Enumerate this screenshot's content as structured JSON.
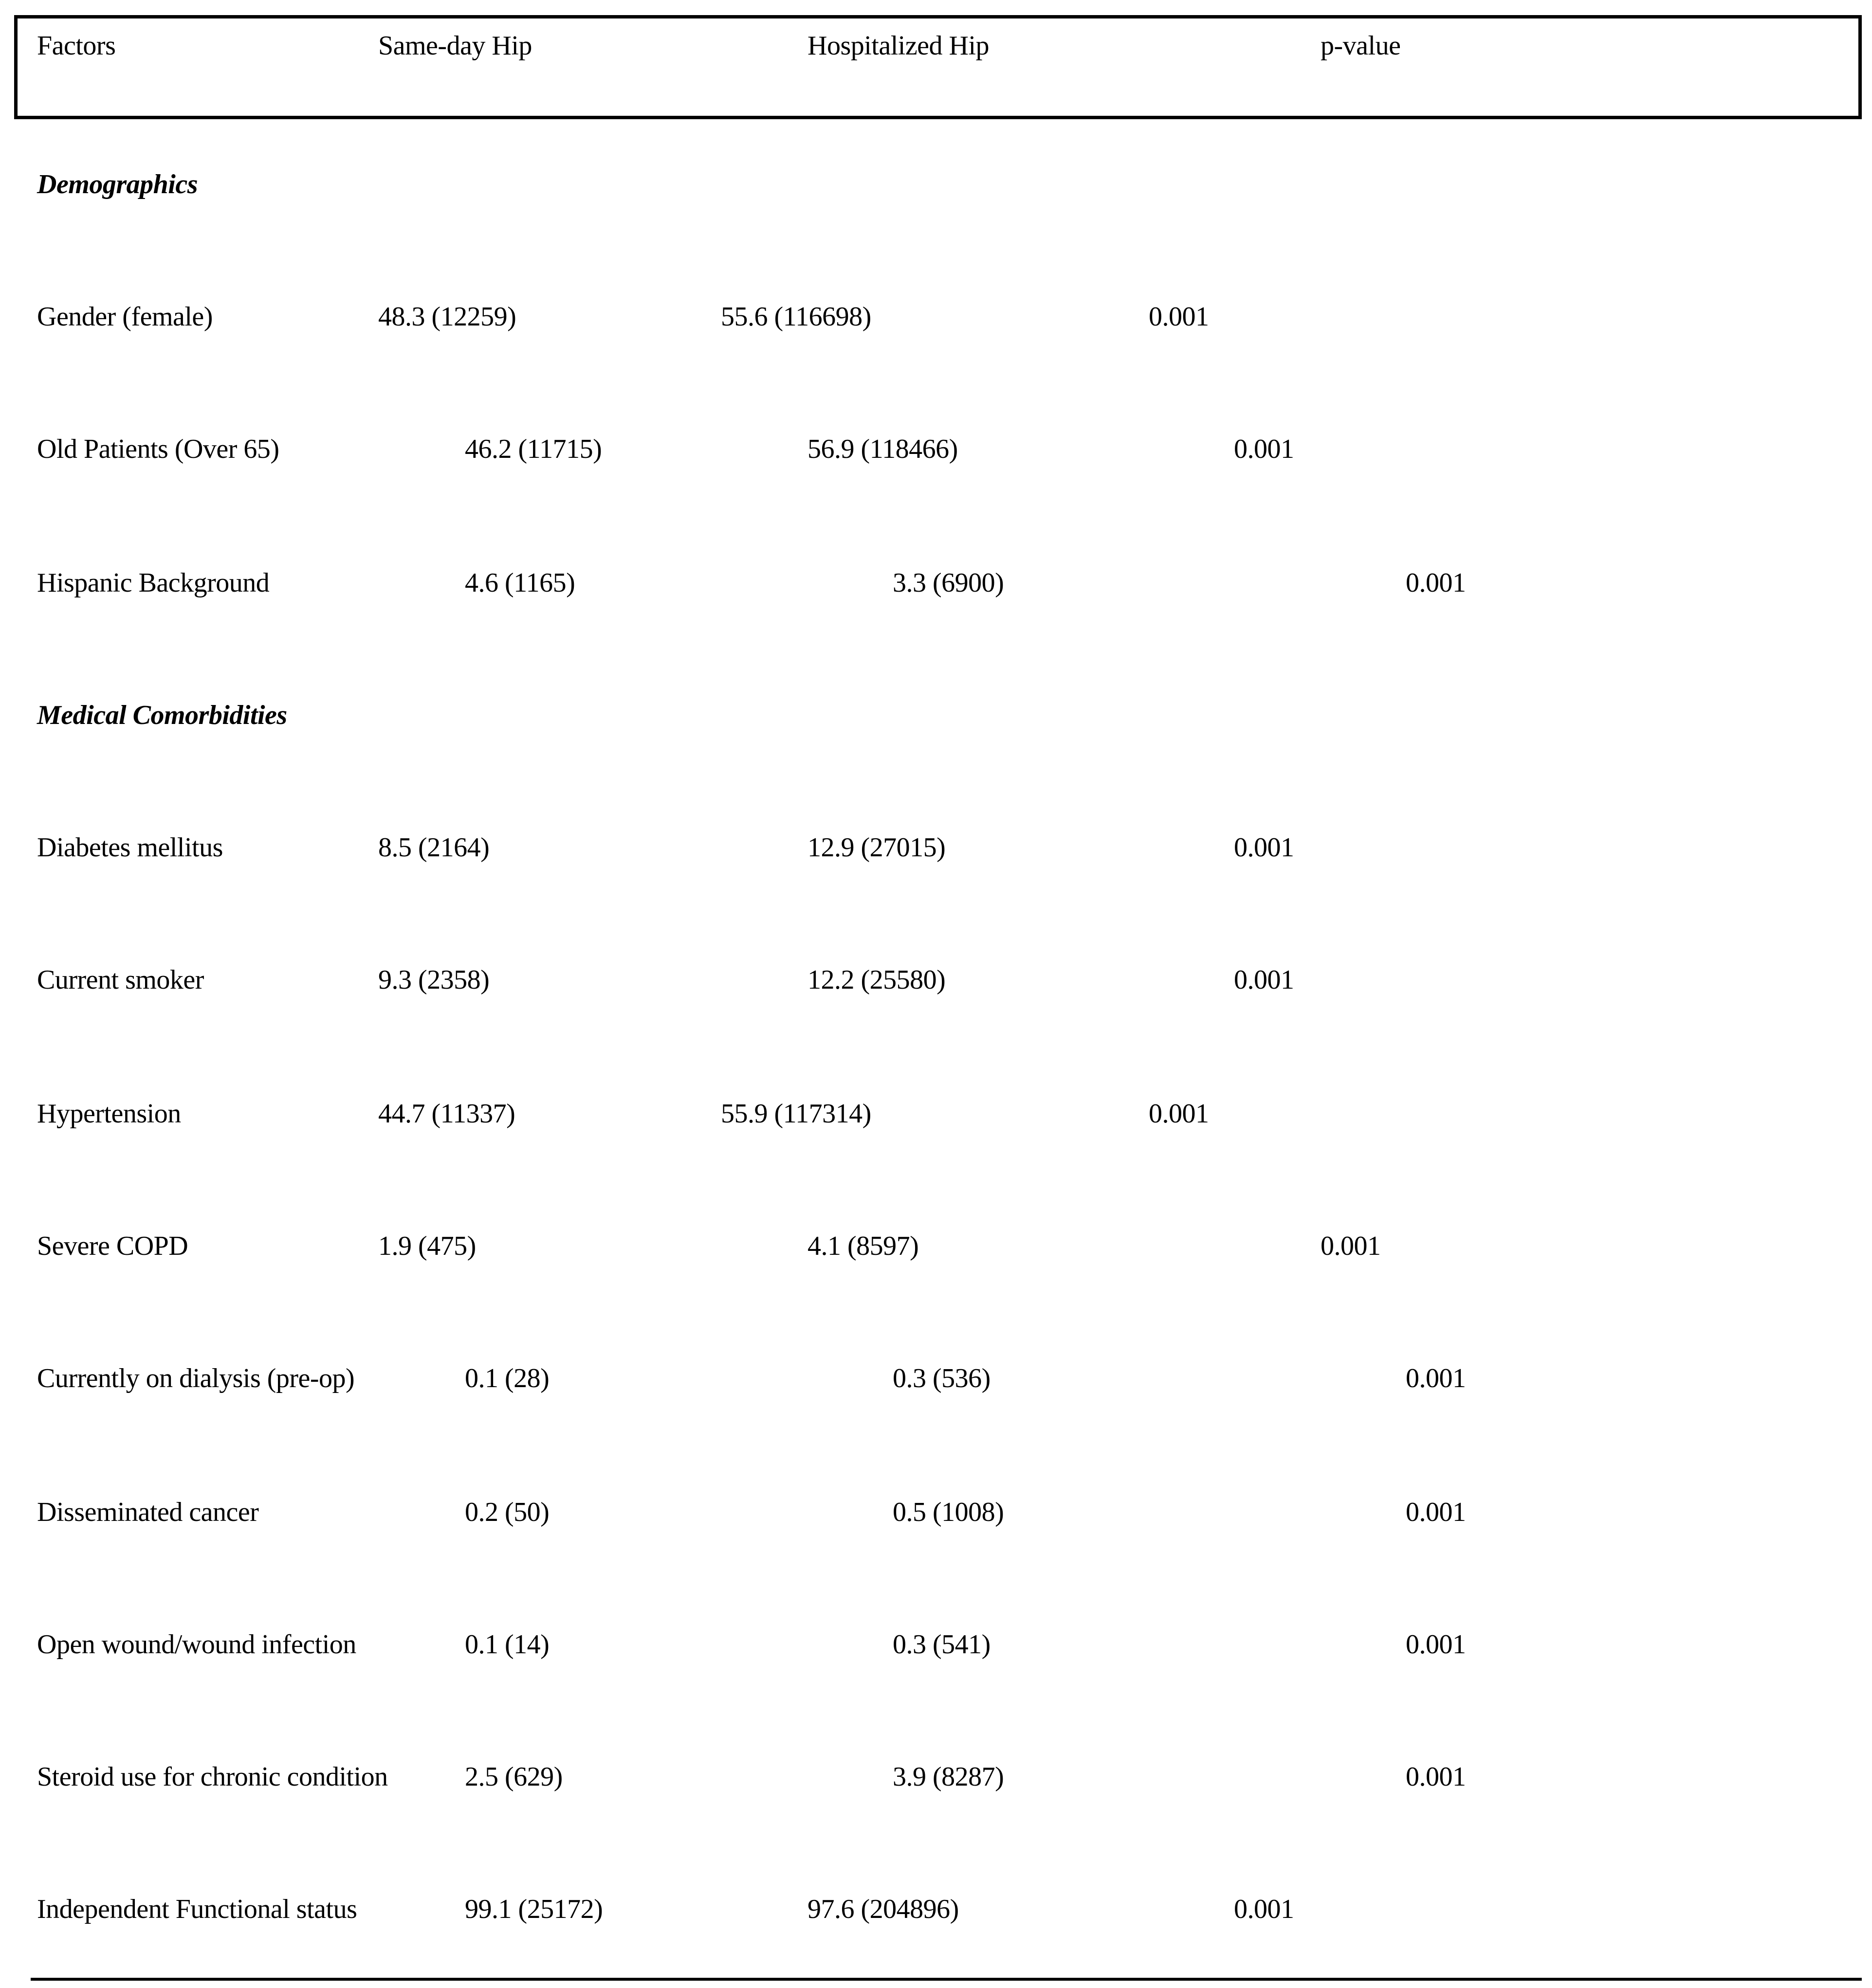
{
  "header": {
    "factors": "Factors",
    "same_day": "Same-day Hip",
    "hospitalized": "Hospitalized Hip",
    "p_value": "p-value"
  },
  "sections": [
    {
      "title": "Demographics",
      "rows": [
        {
          "factor": "Gender (female)",
          "same_day": "48.3 (12259)",
          "hospitalized": "55.6 (116698)",
          "p": "0.001"
        },
        {
          "factor": "Old Patients (Over 65)",
          "same_day": "46.2 (11715)",
          "hospitalized": "56.9 (118466)",
          "p": "0.001"
        },
        {
          "factor": "Hispanic Background",
          "same_day": "4.6 (1165)",
          "hospitalized": "3.3 (6900)",
          "p": "0.001"
        }
      ]
    },
    {
      "title": "Medical Comorbidities",
      "rows": [
        {
          "factor": "Diabetes mellitus",
          "same_day": "8.5 (2164)",
          "hospitalized": "12.9 (27015)",
          "p": "0.001"
        },
        {
          "factor": "Current smoker",
          "same_day": "9.3 (2358)",
          "hospitalized": "12.2 (25580)",
          "p": "0.001"
        },
        {
          "factor": "Hypertension",
          "same_day": "44.7 (11337)",
          "hospitalized": "55.9 (117314)",
          "p": "0.001"
        },
        {
          "factor": "Severe COPD",
          "same_day": "1.9 (475)",
          "hospitalized": "4.1 (8597)",
          "p": "0.001"
        },
        {
          "factor": "Currently on dialysis (pre-op)",
          "same_day": "0.1 (28)",
          "hospitalized": "0.3 (536)",
          "p": "0.001"
        },
        {
          "factor": "Disseminated cancer",
          "same_day": "0.2 (50)",
          "hospitalized": "0.5 (1008)",
          "p": "0.001"
        },
        {
          "factor": "Open wound/wound infection",
          "same_day": "0.1 (14)",
          "hospitalized": "0.3 (541)",
          "p": "0.001"
        },
        {
          "factor": "Steroid use for chronic condition",
          "same_day": "2.5 (629)",
          "hospitalized": "3.9 (8287)",
          "p": "0.001"
        },
        {
          "factor": "Independent Functional status",
          "same_day": "99.1 (25172)",
          "hospitalized": "97.6 (204896)",
          "p": "0.001"
        }
      ]
    }
  ]
}
